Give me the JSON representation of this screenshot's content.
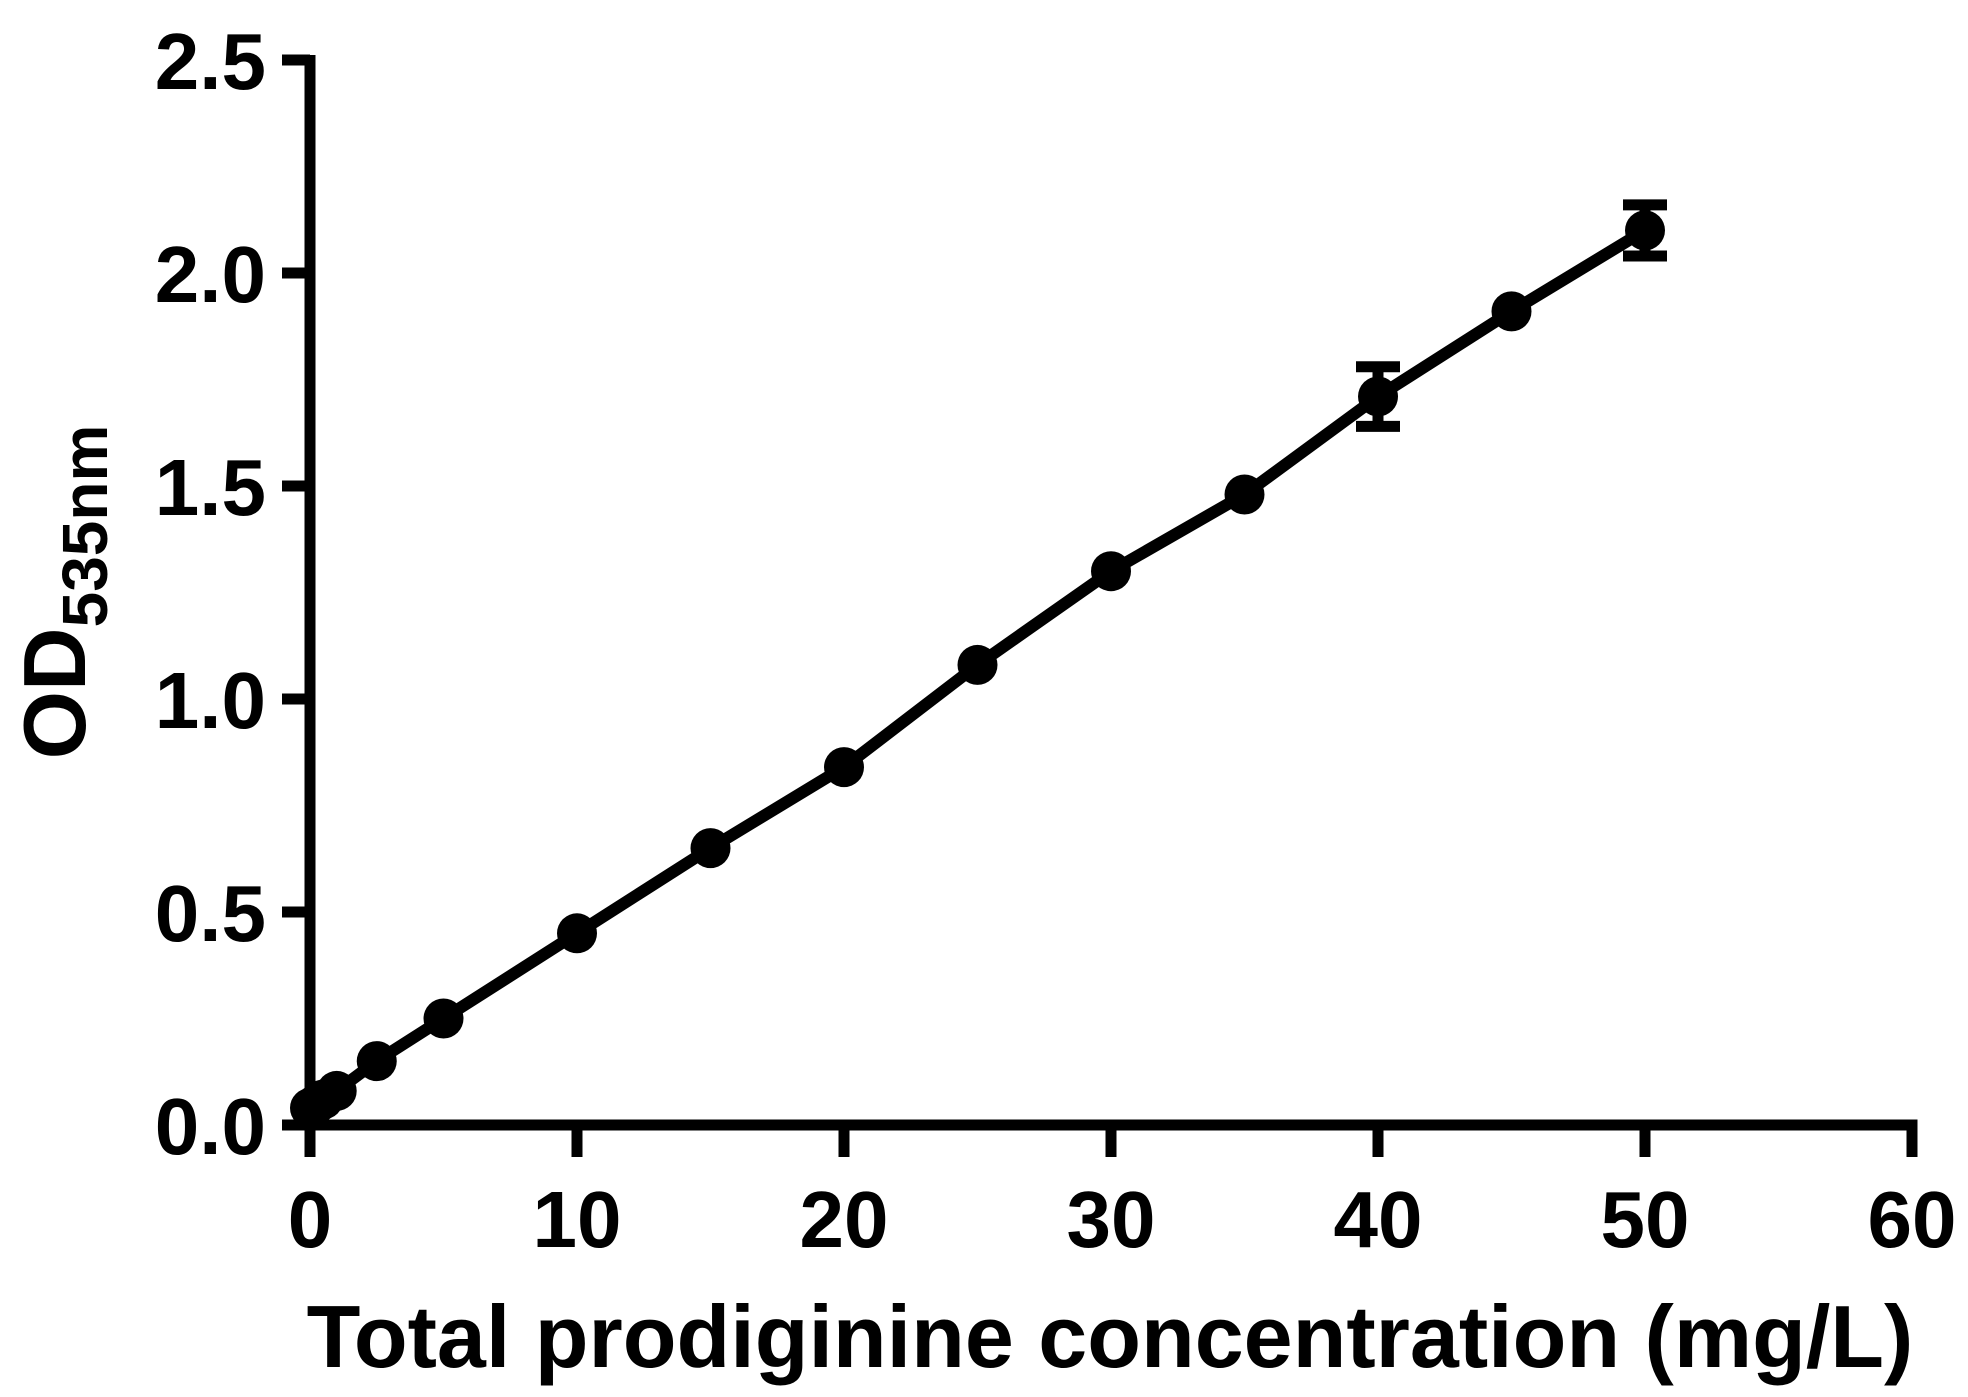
{
  "chart_data": {
    "type": "scatter",
    "title": "",
    "xlabel": "Total prodiginine concentration (mg/L)",
    "ylabel": "OD535nm",
    "ylabel_main": "OD",
    "ylabel_sub": "535nm",
    "xlim": [
      0,
      60
    ],
    "ylim": [
      0.0,
      2.5
    ],
    "x_ticks": [
      "0",
      "10",
      "20",
      "30",
      "40",
      "50",
      "60"
    ],
    "y_ticks": [
      "0.0",
      "0.5",
      "1.0",
      "1.5",
      "2.0",
      "2.5"
    ],
    "grid": false,
    "legend": "none",
    "marker": "filled-circle",
    "line": "straight-connecting-line",
    "colors": {
      "foreground": "#000000",
      "background": "#ffffff"
    },
    "points": [
      {
        "x": 0,
        "y": 0.04,
        "err": 0
      },
      {
        "x": 0.25,
        "y": 0.05,
        "err": 0
      },
      {
        "x": 0.5,
        "y": 0.06,
        "err": 0
      },
      {
        "x": 1,
        "y": 0.08,
        "err": 0
      },
      {
        "x": 2.5,
        "y": 0.15,
        "err": 0
      },
      {
        "x": 5,
        "y": 0.25,
        "err": 0
      },
      {
        "x": 10,
        "y": 0.45,
        "err": 0
      },
      {
        "x": 15,
        "y": 0.65,
        "err": 0
      },
      {
        "x": 20,
        "y": 0.84,
        "err": 0
      },
      {
        "x": 25,
        "y": 1.08,
        "err": 0
      },
      {
        "x": 30,
        "y": 1.3,
        "err": 0
      },
      {
        "x": 35,
        "y": 1.48,
        "err": 0
      },
      {
        "x": 40,
        "y": 1.71,
        "err": 0.07
      },
      {
        "x": 45,
        "y": 1.91,
        "err": 0
      },
      {
        "x": 50,
        "y": 2.1,
        "err": 0.06
      }
    ]
  }
}
